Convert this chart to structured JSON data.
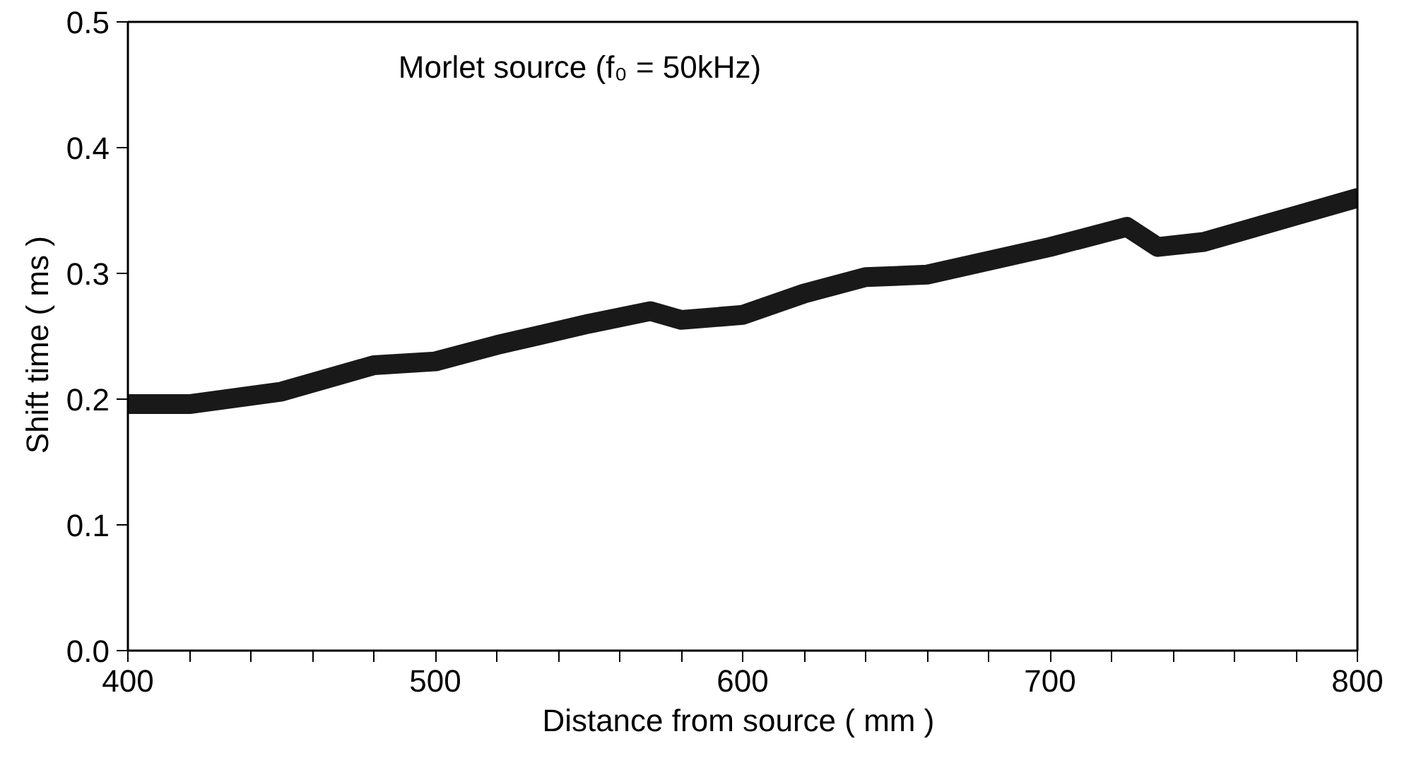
{
  "chart_data": {
    "type": "line",
    "xlabel": "Distance from source  ( mm )",
    "ylabel": "Shift  time  ( ms )",
    "annotations": [
      "Morlet source (f₀ = 50kHz)"
    ],
    "x": [
      400,
      420,
      450,
      480,
      500,
      520,
      550,
      570,
      580,
      600,
      620,
      640,
      660,
      700,
      725,
      735,
      750,
      780,
      800
    ],
    "series": [
      {
        "color": "#000000",
        "values": [
          0.196,
          0.196,
          0.206,
          0.227,
          0.23,
          0.243,
          0.26,
          0.27,
          0.263,
          0.267,
          0.284,
          0.297,
          0.299,
          0.321,
          0.337,
          0.321,
          0.325,
          0.346,
          0.36
        ]
      }
    ],
    "xlim": [
      400,
      800
    ],
    "ylim": [
      0,
      0.5
    ],
    "xticks": [
      400,
      {
        "value": 420,
        "label": null
      },
      {
        "value": 440,
        "label": null
      },
      {
        "value": 460,
        "label": null
      },
      {
        "value": 480,
        "label": null
      },
      500,
      {
        "value": 520,
        "label": null
      },
      {
        "value": 540,
        "label": null
      },
      {
        "value": 560,
        "label": null
      },
      {
        "value": 580,
        "label": null
      },
      600,
      {
        "value": 620,
        "label": null
      },
      {
        "value": 640,
        "label": null
      },
      {
        "value": 660,
        "label": null
      },
      {
        "value": 680,
        "label": null
      },
      700,
      {
        "value": 720,
        "label": null
      },
      {
        "value": 740,
        "label": null
      },
      {
        "value": 760,
        "label": null
      },
      {
        "value": 780,
        "label": null
      },
      800
    ],
    "yticks": [
      {
        "value": 0,
        "label": "0.0"
      },
      0.1,
      0.2,
      0.3,
      0.4,
      0.5
    ],
    "grid": false,
    "marker": "none",
    "line_style": "solid"
  }
}
